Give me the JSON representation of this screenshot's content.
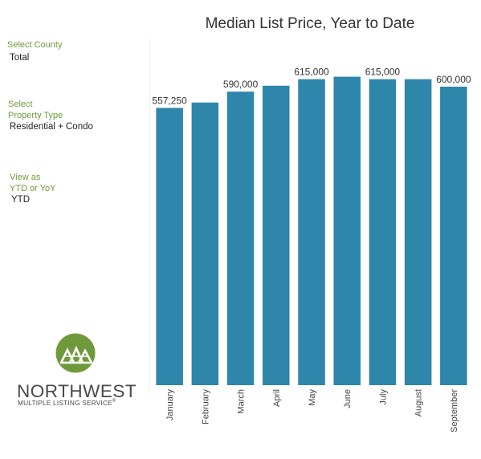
{
  "filters": {
    "county": {
      "label": "Select County",
      "value": "Total"
    },
    "property_type": {
      "label_line1": "Select",
      "label_line2": "Property Type",
      "value": "Residential + Condo"
    },
    "view": {
      "label_line1": "View as",
      "label_line2": "YTD or YoY",
      "value": "YTD"
    }
  },
  "logo": {
    "word": "NORTHWEST",
    "subtitle": "MULTIPLE LISTING SERVICE",
    "mark": "®",
    "icon": "nwmls-peaks-icon"
  },
  "colors": {
    "bar": "#2e86ab",
    "filter_label": "#6f9a3c",
    "logo_circle": "#6f9a3c"
  },
  "chart_data": {
    "type": "bar",
    "title": "Median List Price, Year to Date",
    "categories": [
      "January",
      "February",
      "March",
      "April",
      "May",
      "June",
      "July",
      "August",
      "September"
    ],
    "values": [
      557250,
      568000,
      590000,
      602000,
      615000,
      620000,
      615000,
      615000,
      600000
    ],
    "data_labels": [
      "557,250",
      "",
      "590,000",
      "",
      "615,000",
      "",
      "615,000",
      "",
      "600,000"
    ],
    "ylim": [
      0,
      700000
    ],
    "grid": false,
    "xlabel": "",
    "ylabel": ""
  }
}
